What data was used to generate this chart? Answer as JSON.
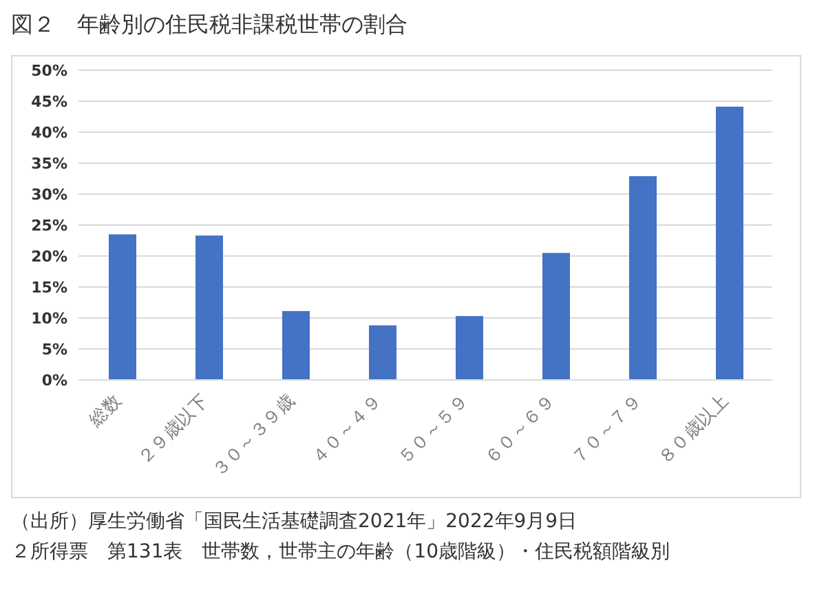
{
  "chart_data": {
    "type": "bar",
    "title": "図２　年齢別の住民税非課税世帯の割合",
    "categories": [
      "総数",
      "２９歳以下",
      "３０～３９歳",
      "４０～４９",
      "５０～５９",
      "６０～６９",
      "７０～７９",
      "８０歳以上"
    ],
    "values": [
      23.5,
      23.3,
      11.1,
      8.8,
      10.3,
      20.5,
      32.9,
      44.1
    ],
    "color": "#4472c4",
    "ylim": [
      0,
      50
    ],
    "yticks": [
      {
        "value": 0,
        "label": "0%"
      },
      {
        "value": 5,
        "label": "5%"
      },
      {
        "value": 10,
        "label": "10%"
      },
      {
        "value": 15,
        "label": "15%"
      },
      {
        "value": 20,
        "label": "20%"
      },
      {
        "value": 25,
        "label": "25%"
      },
      {
        "value": 30,
        "label": "30%"
      },
      {
        "value": 35,
        "label": "35%"
      },
      {
        "value": 40,
        "label": "40%"
      },
      {
        "value": 45,
        "label": "45%"
      },
      {
        "value": 50,
        "label": "50%"
      }
    ],
    "grid": "y",
    "annotations": [
      "（出所）厚生労働省「国民生活基礎調査2021年」2022年9月9日",
      "２所得票　第131表　世帯数，世帯主の年齢（10歳階級）・住民税額階級別"
    ]
  }
}
